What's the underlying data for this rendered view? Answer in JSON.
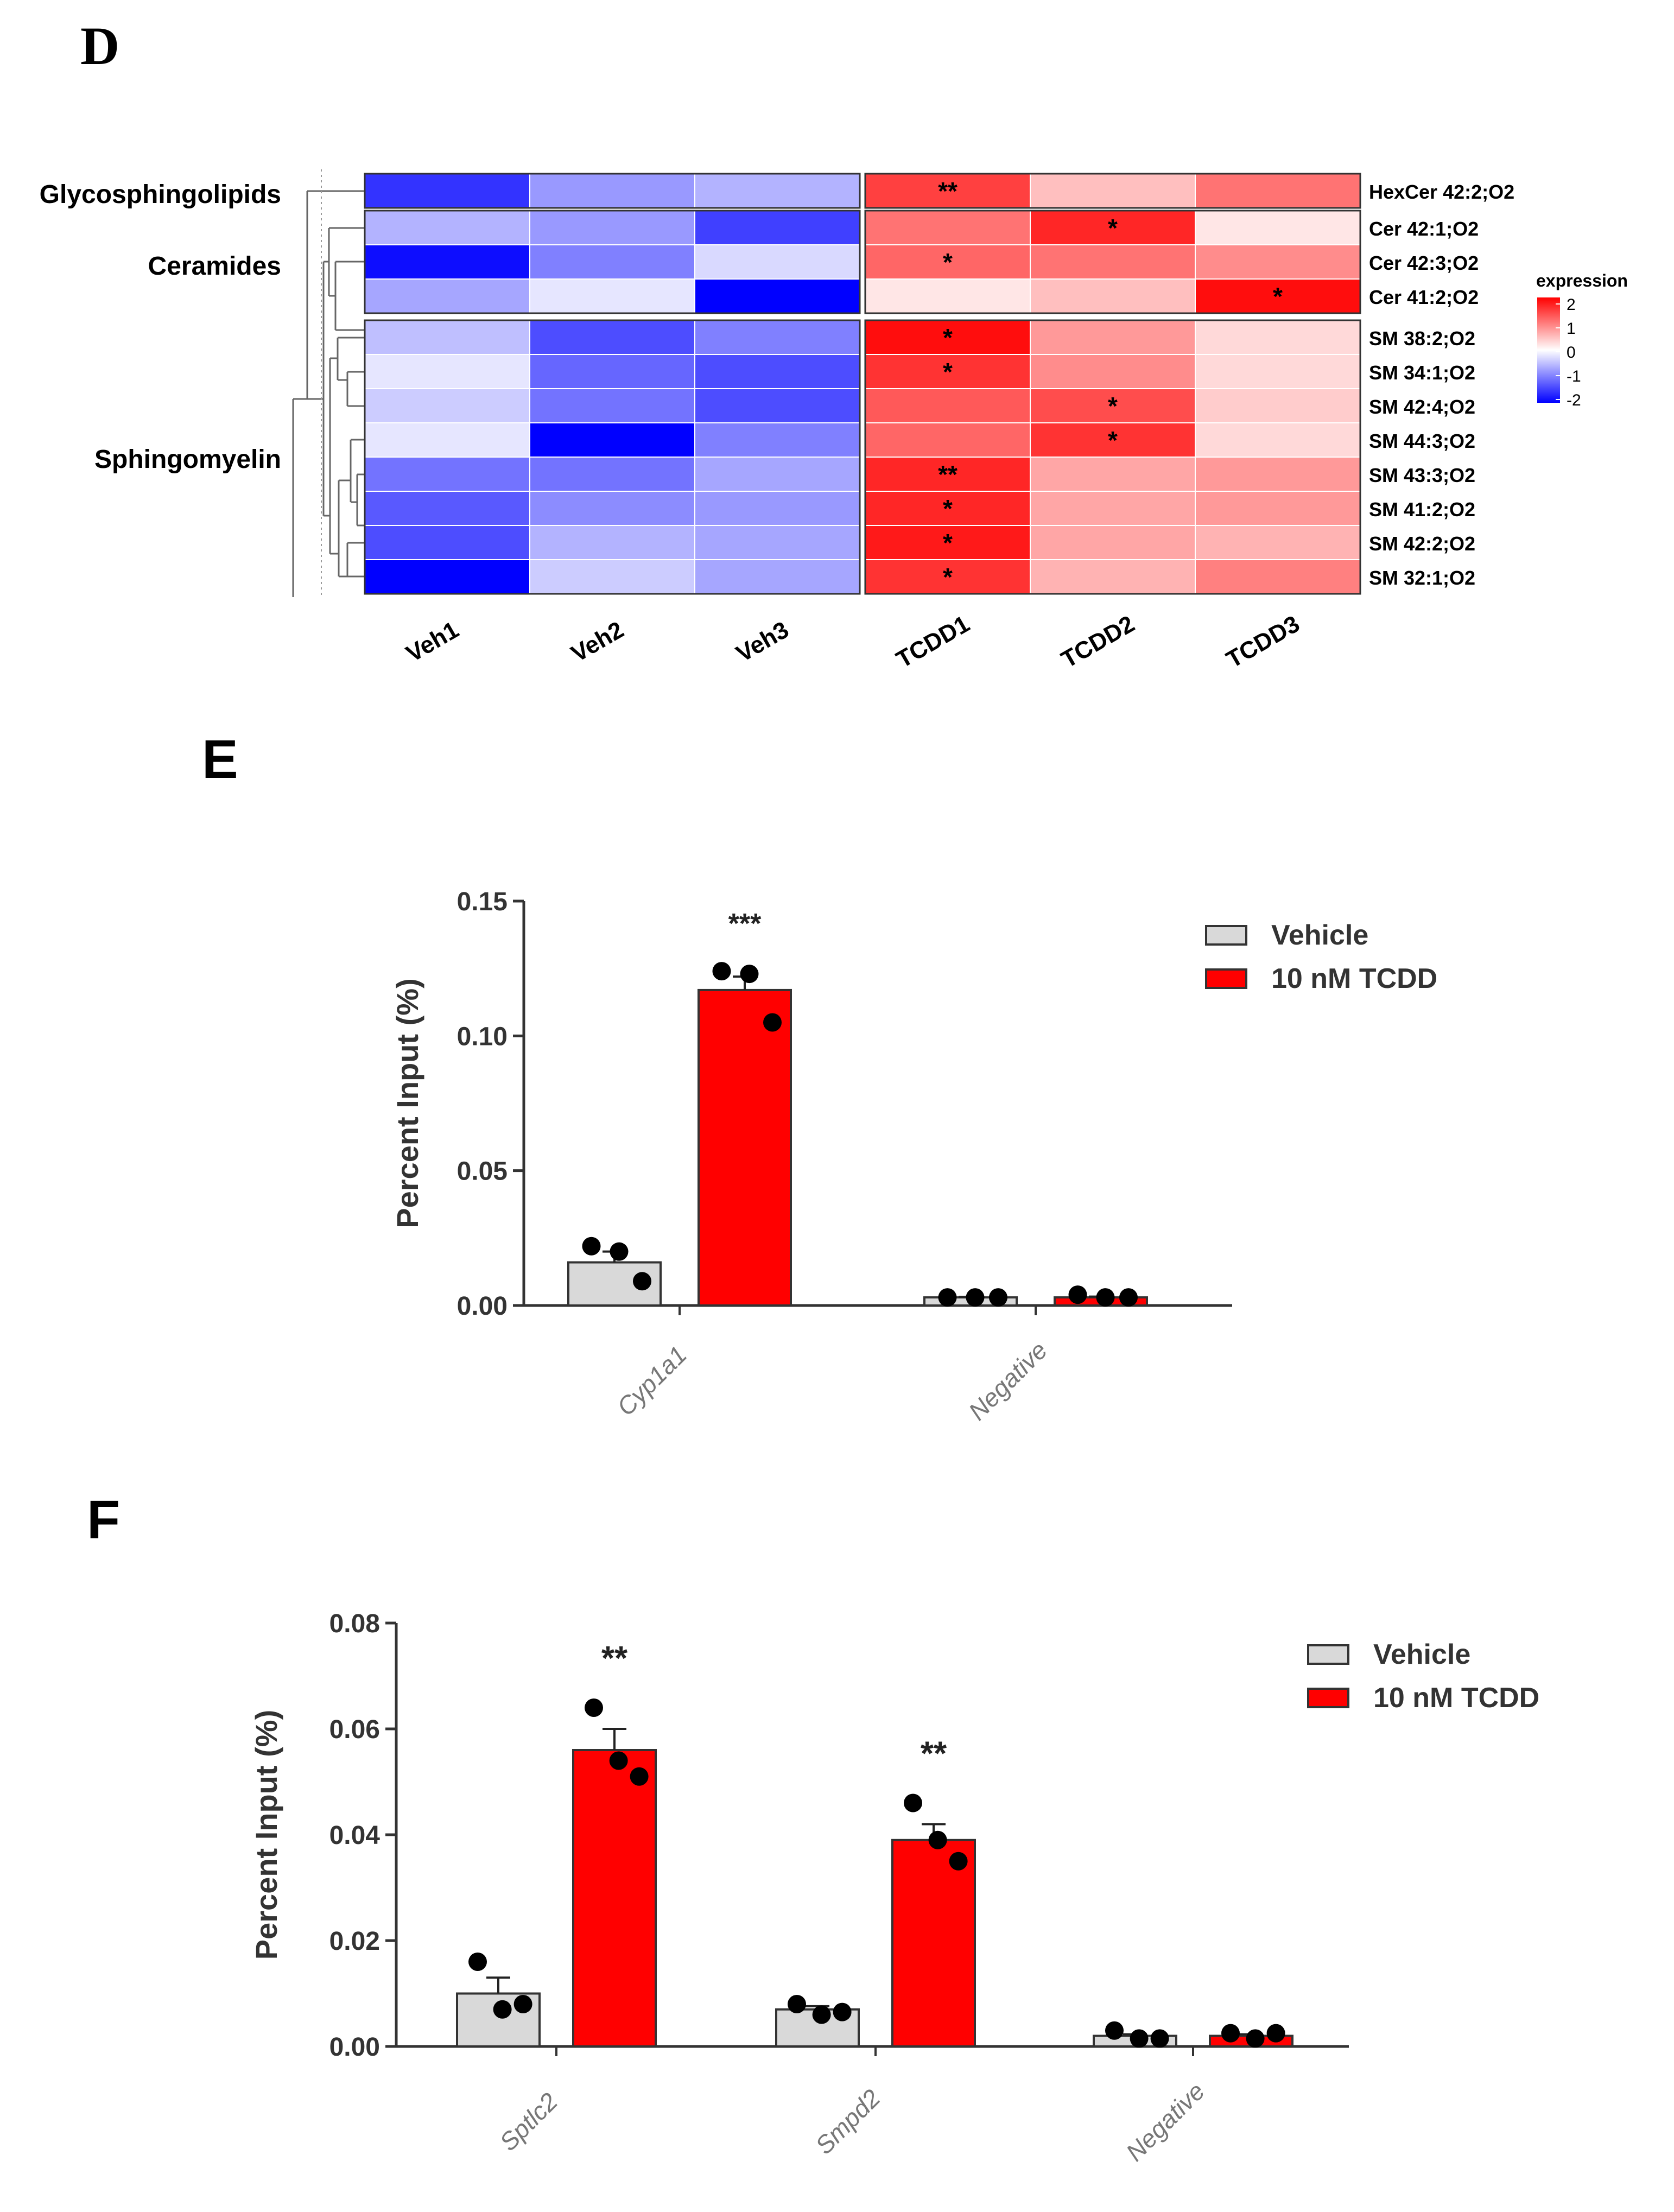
{
  "panel_labels": {
    "d": "D",
    "e": "E",
    "f": "F"
  },
  "colors": {
    "red": "#ff0000",
    "gray": "#d9d9d9",
    "blue": "#0000ff",
    "white": "#ffffff"
  },
  "chart_data": [
    {
      "type": "heatmap",
      "panel": "D",
      "columns": [
        "Veh1",
        "Veh2",
        "Veh3",
        "TCDD1",
        "TCDD2",
        "TCDD3"
      ],
      "rows": [
        "HexCer 42:2;O2",
        "Cer 42:1;O2",
        "Cer 42:3;O2",
        "Cer 41:2;O2",
        "SM 38:2;O2",
        "SM 34:1;O2",
        "SM 42:4;O2",
        "SM 44:3;O2",
        "SM 43:3;O2",
        "SM 41:2;O2",
        "SM 42:2;O2",
        "SM 32:1;O2"
      ],
      "groups": [
        {
          "label": "Glycosphingolipids",
          "rows": [
            0
          ]
        },
        {
          "label": "Ceramides",
          "rows": [
            1,
            2,
            3
          ]
        },
        {
          "label": "Sphingomyelin",
          "rows": [
            4,
            5,
            6,
            7,
            8,
            9,
            10,
            11
          ]
        }
      ],
      "values": [
        [
          -1.6,
          -0.8,
          -0.6,
          1.5,
          0.5,
          1.1
        ],
        [
          -0.6,
          -0.8,
          -1.5,
          1.1,
          1.7,
          0.2
        ],
        [
          -1.9,
          -1.0,
          -0.3,
          1.2,
          1.1,
          0.9
        ],
        [
          -0.7,
          -0.2,
          -2.0,
          0.2,
          0.5,
          1.9
        ],
        [
          -0.5,
          -1.4,
          -1.0,
          1.9,
          0.8,
          0.3
        ],
        [
          -0.2,
          -1.2,
          -1.4,
          1.6,
          0.9,
          0.3
        ],
        [
          -0.4,
          -1.1,
          -1.4,
          1.3,
          1.4,
          0.4
        ],
        [
          -0.2,
          -2.0,
          -1.0,
          1.2,
          1.6,
          0.3
        ],
        [
          -1.1,
          -1.1,
          -0.7,
          1.7,
          0.7,
          0.8
        ],
        [
          -1.3,
          -0.9,
          -0.8,
          1.7,
          0.7,
          0.8
        ],
        [
          -1.4,
          -0.6,
          -0.7,
          1.8,
          0.7,
          0.6
        ],
        [
          -2.0,
          -0.4,
          -0.7,
          1.6,
          0.6,
          1.0
        ]
      ],
      "significance": [
        [
          "",
          "",
          "",
          "**",
          "",
          ""
        ],
        [
          "",
          "",
          "",
          "",
          "*",
          ""
        ],
        [
          "",
          "",
          "",
          "*",
          "",
          ""
        ],
        [
          "",
          "",
          "",
          "",
          "",
          "*"
        ],
        [
          "",
          "",
          "",
          "*",
          "",
          ""
        ],
        [
          "",
          "",
          "",
          "*",
          "",
          ""
        ],
        [
          "",
          "",
          "",
          "",
          "*",
          ""
        ],
        [
          "",
          "",
          "",
          "",
          "*",
          ""
        ],
        [
          "",
          "",
          "",
          "**",
          "",
          ""
        ],
        [
          "",
          "",
          "",
          "*",
          "",
          ""
        ],
        [
          "",
          "",
          "",
          "*",
          "",
          ""
        ],
        [
          "",
          "",
          "",
          "*",
          "",
          ""
        ]
      ],
      "legend": {
        "title": "expression",
        "ticks": [
          "2",
          "1",
          "0",
          "-1",
          "-2"
        ],
        "range": [
          -2,
          2
        ]
      }
    },
    {
      "type": "bar",
      "panel": "E",
      "ylabel": "Percent Input (%)",
      "ylim": [
        0,
        0.15
      ],
      "yticks": [
        "0.00",
        "0.05",
        "0.10",
        "0.15"
      ],
      "categories": [
        "Cyp1a1",
        "Negative"
      ],
      "series": [
        {
          "name": "Vehicle",
          "values": [
            0.016,
            0.003
          ],
          "errors": [
            0.004,
            0.0002
          ],
          "points": [
            [
              0.022,
              0.02,
              0.009
            ],
            [
              0.003,
              0.003,
              0.003
            ]
          ]
        },
        {
          "name": "10 nM TCDD",
          "values": [
            0.117,
            0.003
          ],
          "errors": [
            0.005,
            0.0003
          ],
          "points": [
            [
              0.124,
              0.123,
              0.105
            ],
            [
              0.004,
              0.003,
              0.003
            ]
          ]
        }
      ],
      "annotations": [
        {
          "category": 0,
          "series": 1,
          "text": "***"
        }
      ]
    },
    {
      "type": "bar",
      "panel": "F",
      "ylabel": "Percent Input (%)",
      "ylim": [
        0,
        0.08
      ],
      "yticks": [
        "0.00",
        "0.02",
        "0.04",
        "0.06",
        "0.08"
      ],
      "categories": [
        "Sptlc2",
        "Smpd2",
        "Negative"
      ],
      "series": [
        {
          "name": "Vehicle",
          "values": [
            0.01,
            0.007,
            0.002
          ],
          "errors": [
            0.003,
            0.0006,
            0.0003
          ],
          "points": [
            [
              0.016,
              0.007,
              0.008
            ],
            [
              0.008,
              0.006,
              0.0065
            ],
            [
              0.003,
              0.0015,
              0.0015
            ]
          ]
        },
        {
          "name": "10 nM TCDD",
          "values": [
            0.056,
            0.039,
            0.002
          ],
          "errors": [
            0.004,
            0.003,
            0.0003
          ],
          "points": [
            [
              0.064,
              0.054,
              0.051
            ],
            [
              0.046,
              0.039,
              0.035
            ],
            [
              0.0025,
              0.0015,
              0.0025
            ]
          ]
        }
      ],
      "annotations": [
        {
          "category": 0,
          "series": 1,
          "text": "**"
        },
        {
          "category": 1,
          "series": 1,
          "text": "**"
        }
      ]
    }
  ]
}
